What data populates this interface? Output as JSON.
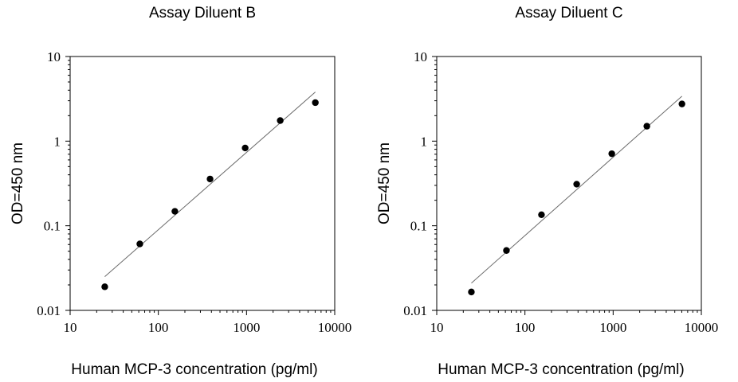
{
  "chart_data": [
    {
      "type": "scatter",
      "title": "Assay Diluent B",
      "xlabel": "Human MCP-3 concentration (pg/ml)",
      "ylabel": "OD=450 nm",
      "xscale": "log",
      "yscale": "log",
      "xlim": [
        10,
        10000
      ],
      "ylim": [
        0.01,
        10
      ],
      "xticks": [
        10,
        100,
        1000,
        10000
      ],
      "yticks": [
        0.01,
        0.1,
        1,
        10
      ],
      "xtick_labels": [
        "10",
        "100",
        "1000",
        "10000"
      ],
      "ytick_labels": [
        "0.01",
        "0.1",
        "1",
        "10"
      ],
      "grid": false,
      "series": [
        {
          "x": [
            24.7,
            61.7,
            154,
            386,
            965,
            2411,
            6028
          ],
          "y": [
            0.019,
            0.061,
            0.148,
            0.357,
            0.83,
            1.75,
            2.85
          ]
        }
      ],
      "fit_line": {
        "x": [
          24.7,
          6028
        ],
        "y": [
          0.025,
          3.8
        ]
      }
    },
    {
      "type": "scatter",
      "title": "Assay Diluent C",
      "xlabel": "Human MCP-3 concentration (pg/ml)",
      "ylabel": "OD=450 nm",
      "xscale": "log",
      "yscale": "log",
      "xlim": [
        10,
        10000
      ],
      "ylim": [
        0.01,
        10
      ],
      "xticks": [
        10,
        100,
        1000,
        10000
      ],
      "yticks": [
        0.01,
        0.1,
        1,
        10
      ],
      "xtick_labels": [
        "10",
        "100",
        "1000",
        "10000"
      ],
      "ytick_labels": [
        "0.01",
        "0.1",
        "1",
        "10"
      ],
      "grid": false,
      "series": [
        {
          "x": [
            24.7,
            61.7,
            154,
            386,
            965,
            2411,
            6028
          ],
          "y": [
            0.0165,
            0.051,
            0.135,
            0.31,
            0.71,
            1.5,
            2.75
          ]
        }
      ],
      "fit_line": {
        "x": [
          24.7,
          6028
        ],
        "y": [
          0.021,
          3.4
        ]
      }
    }
  ]
}
